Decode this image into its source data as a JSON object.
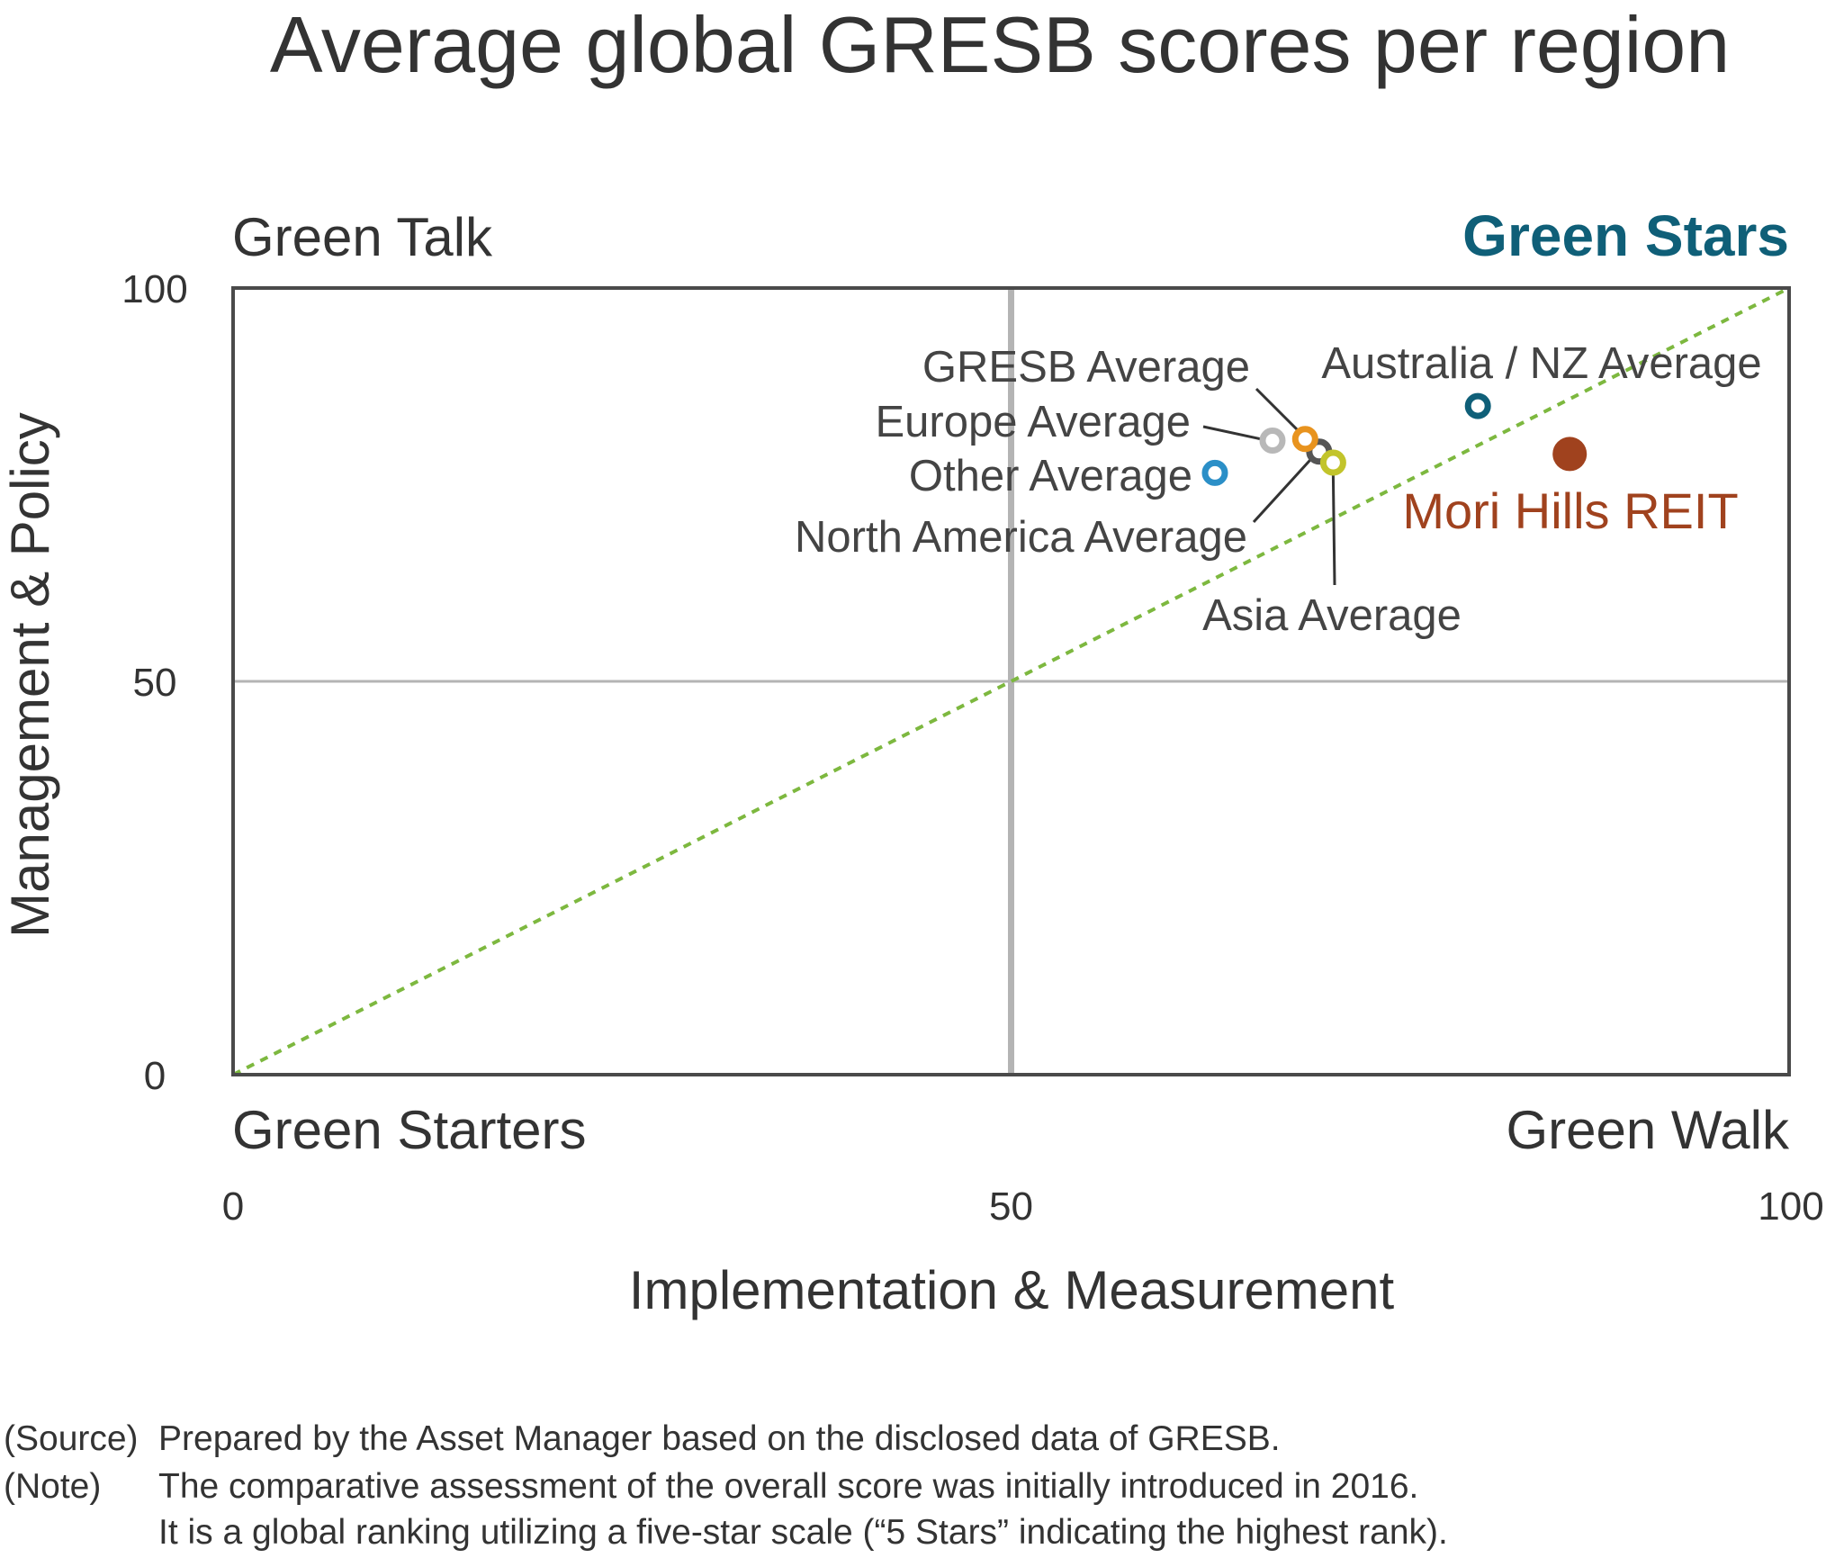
{
  "title": "Average global GRESB scores per region",
  "quadrants": {
    "top_left": "Green Talk",
    "top_right": "Green Stars",
    "bottom_left": "Green Starters",
    "bottom_right": "Green Walk"
  },
  "colors": {
    "frame": "#4a4a4a",
    "midline": "#b4b4b4",
    "diagonal": "#7db83f",
    "highlight_text": "#0f5f78",
    "mori": "#a0421e"
  },
  "chart_data": {
    "type": "scatter",
    "title": "Average global GRESB scores per region",
    "xlabel": "Implementation & Measurement",
    "ylabel": "Management & Policy",
    "xlim": [
      0,
      100
    ],
    "ylim": [
      0,
      100
    ],
    "xticks": [
      "0",
      "50",
      "100"
    ],
    "yticks": [
      "0",
      "50",
      "100"
    ],
    "reference_lines": {
      "x": 50,
      "y": 50,
      "diagonal": "dashed x = y"
    },
    "points": [
      {
        "label": "GRESB Average",
        "x": 69.8,
        "y": 79.2,
        "color": "#555555",
        "marker": "ring"
      },
      {
        "label": "Europe Average",
        "x": 66.8,
        "y": 80.6,
        "color": "#b8b8b8",
        "marker": "ring"
      },
      {
        "label": "Other Average",
        "x": 63.1,
        "y": 76.5,
        "color": "#2b8fc7",
        "marker": "ring"
      },
      {
        "label": "North America Average",
        "x": 68.9,
        "y": 80.8,
        "color": "#e8931e",
        "marker": "ring"
      },
      {
        "label": "Asia Average",
        "x": 70.7,
        "y": 77.8,
        "color": "#c2c42b",
        "marker": "ring"
      },
      {
        "label": "Australia / NZ Average",
        "x": 80.0,
        "y": 85.0,
        "color": "#0f5f78",
        "marker": "ring"
      },
      {
        "label": "Mori Hills REIT",
        "x": 85.9,
        "y": 78.9,
        "color": "#a0421e",
        "marker": "filled"
      }
    ]
  },
  "notes": {
    "source_tag": "(Source)",
    "source_text": "Prepared by the Asset Manager based on the disclosed data of GRESB.",
    "note_tag": "(Note)",
    "note_line1": "The comparative assessment of the overall score was initially introduced in 2016.",
    "note_line2": "It is a global ranking utilizing a five-star scale (“5 Stars” indicating the highest rank)."
  }
}
